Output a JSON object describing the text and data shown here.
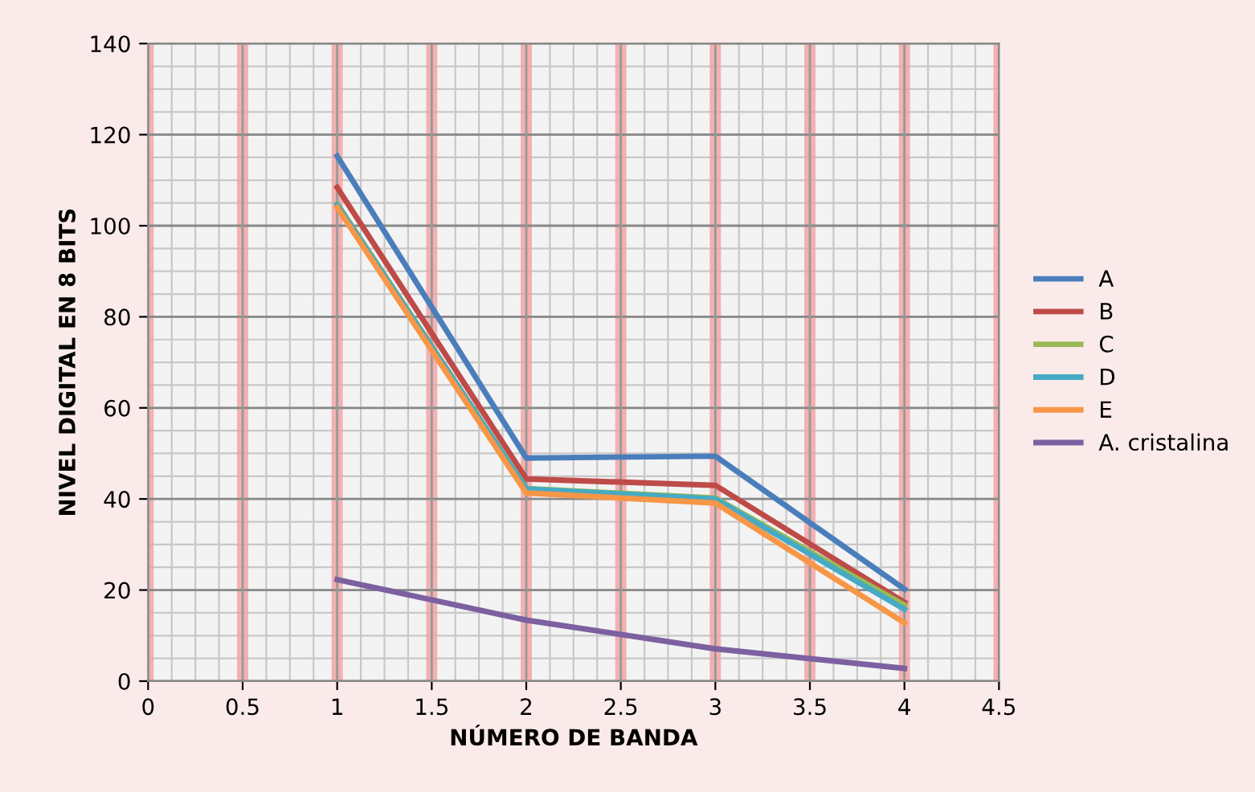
{
  "chart_data": {
    "type": "line",
    "xlabel": "NÚMERO DE BANDA",
    "ylabel": "NIVEL DIGITAL EN 8 BITS",
    "x": [
      1,
      2,
      3,
      4
    ],
    "series": [
      {
        "name": "A",
        "color": "#4a7ebb",
        "values": [
          115.3,
          49,
          49.4,
          20.2
        ]
      },
      {
        "name": "B",
        "color": "#be4b48",
        "values": [
          108.4,
          44.4,
          43,
          17.3
        ]
      },
      {
        "name": "C",
        "color": "#98b954",
        "values": [
          104.8,
          42.3,
          40.2,
          16.7
        ]
      },
      {
        "name": "D",
        "color": "#46aac5",
        "values": [
          104.6,
          42.2,
          40,
          15.8
        ]
      },
      {
        "name": "E",
        "color": "#f79646",
        "values": [
          104,
          41.3,
          39.1,
          12.8
        ]
      },
      {
        "name": "A. cristalina",
        "color": "#7d60a0",
        "values": [
          22.3,
          13.4,
          7.1,
          2.8
        ]
      }
    ],
    "xlim": [
      0,
      4.5
    ],
    "xticks": [
      0,
      0.5,
      1,
      1.5,
      2,
      2.5,
      3,
      3.5,
      4,
      4.5
    ],
    "ylim": [
      0,
      140
    ],
    "yticks": [
      0,
      20,
      40,
      60,
      80,
      100,
      120,
      140
    ],
    "grid": true,
    "legend": "right",
    "marker": "none",
    "line_style": "solid"
  }
}
